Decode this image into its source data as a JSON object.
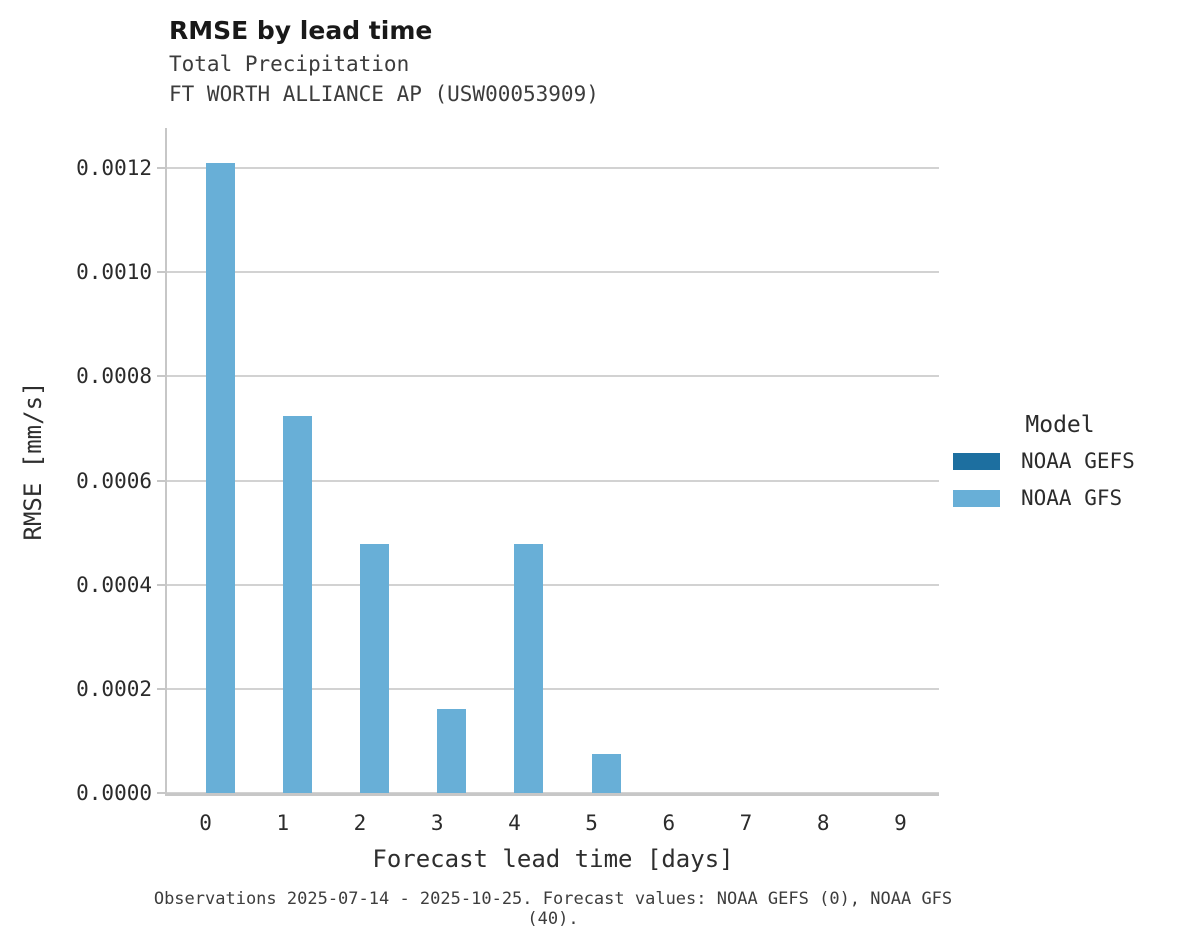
{
  "figure": {
    "title": "RMSE by lead time",
    "subtitle_line1": "Total Precipitation",
    "subtitle_line2": "FT WORTH ALLIANCE AP (USW00053909)",
    "caption": "Observations 2025-07-14 - 2025-10-25. Forecast values: NOAA GEFS (0), NOAA GFS (40)."
  },
  "legend": {
    "title": "Model",
    "entries": [
      {
        "label": "NOAA GEFS",
        "color": "#1d6fa0"
      },
      {
        "label": "NOAA GFS",
        "color": "#68afd7"
      }
    ]
  },
  "chart_data": {
    "type": "bar",
    "grouped": true,
    "title": "RMSE by lead time",
    "subtitle": [
      "Total Precipitation",
      "FT WORTH ALLIANCE AP (USW00053909)"
    ],
    "xlabel": "Forecast lead time [days]",
    "ylabel": "RMSE [mm/s]",
    "categories": [
      "0",
      "1",
      "2",
      "3",
      "4",
      "5",
      "6",
      "7",
      "8",
      "9"
    ],
    "series": [
      {
        "name": "NOAA GEFS",
        "color": "#1d6fa0",
        "values": [
          0,
          0,
          0,
          0,
          0,
          0,
          0,
          0,
          0,
          0
        ]
      },
      {
        "name": "NOAA GFS",
        "color": "#68afd7",
        "values": [
          0.00121,
          0.000724,
          0.000478,
          0.000161,
          0.000478,
          7.5e-05,
          0,
          0,
          0,
          0
        ]
      }
    ],
    "ylim": [
      0,
      0.001277
    ],
    "y_ticks": [
      "0.0000",
      "0.0002",
      "0.0004",
      "0.0006",
      "0.0008",
      "0.0010",
      "0.0012"
    ],
    "grid": "horizontal",
    "legend_position": "right",
    "legend_title": "Model"
  }
}
